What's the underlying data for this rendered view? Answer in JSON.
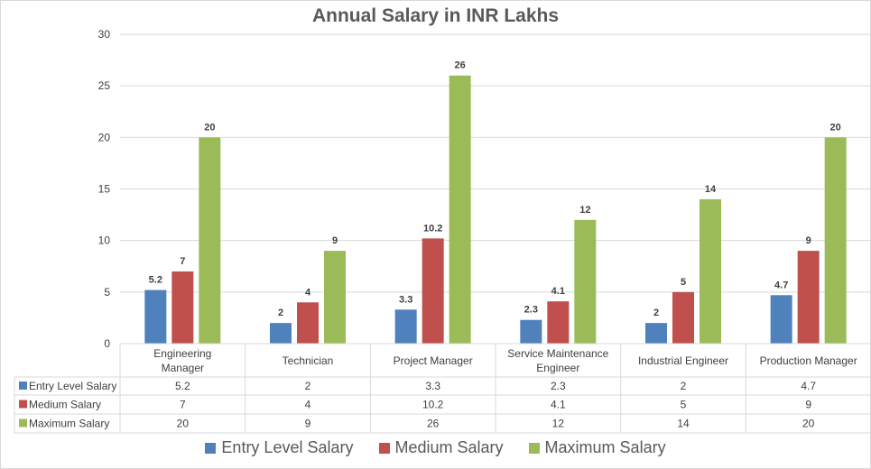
{
  "chart_data": {
    "type": "bar",
    "title": "Annual Salary in INR Lakhs",
    "xlabel": "",
    "ylabel": "",
    "ylim": [
      0,
      30
    ],
    "yticks": [
      "0",
      "5",
      "10",
      "15",
      "20",
      "25",
      "30"
    ],
    "grid": true,
    "legend_position": "bottom",
    "categories": [
      "Engineering Manager",
      "Technician",
      "Project Manager",
      "Service Maintenance Engineer",
      "Industrial Engineer",
      "Production Manager"
    ],
    "category_lines": [
      [
        "Engineering",
        "Manager"
      ],
      [
        "Technician"
      ],
      [
        "Project Manager"
      ],
      [
        "Service Maintenance",
        "Engineer"
      ],
      [
        "Industrial Engineer"
      ],
      [
        "Production Manager"
      ]
    ],
    "series": [
      {
        "name": "Entry Level Salary",
        "color": "#4f81bd",
        "values": [
          5.2,
          2,
          3.3,
          2.3,
          2,
          4.7
        ],
        "labels": [
          "5.2",
          "2",
          "3.3",
          "2.3",
          "2",
          "4.7"
        ]
      },
      {
        "name": "Medium Salary",
        "color": "#c0504d",
        "values": [
          7,
          4,
          10.2,
          4.1,
          5,
          9
        ],
        "labels": [
          "7",
          "4",
          "10.2",
          "4.1",
          "5",
          "9"
        ]
      },
      {
        "name": "Maximum Salary",
        "color": "#9bbb59",
        "values": [
          20,
          9,
          26,
          12,
          14,
          20
        ],
        "labels": [
          "20",
          "9",
          "26",
          "12",
          "14",
          "20"
        ]
      }
    ],
    "data_table": true
  }
}
